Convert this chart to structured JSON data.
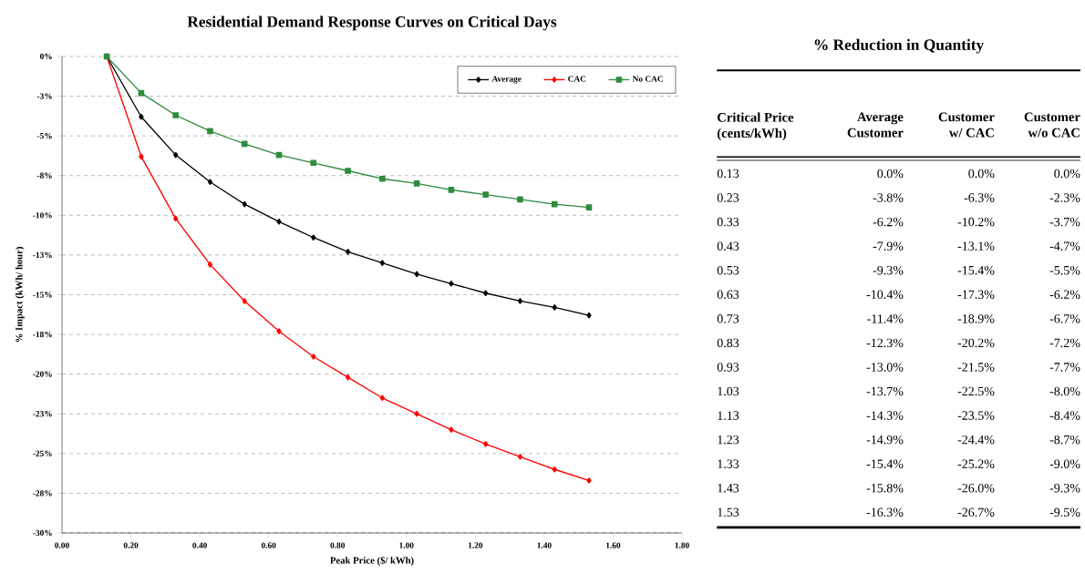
{
  "chart_data": {
    "type": "line",
    "title": "Residential Demand Response Curves on Critical Days",
    "xlabel": "Peak Price ($/ kWh)",
    "ylabel": "% Impact (kWh/ hour)",
    "x": [
      0.13,
      0.23,
      0.33,
      0.43,
      0.53,
      0.63,
      0.73,
      0.83,
      0.93,
      1.03,
      1.13,
      1.23,
      1.33,
      1.43,
      1.53
    ],
    "series": [
      {
        "name": "Average",
        "color": "#000000",
        "marker": "diamond",
        "values": [
          0.0,
          -3.8,
          -6.2,
          -7.9,
          -9.3,
          -10.4,
          -11.4,
          -12.3,
          -13.0,
          -13.7,
          -14.3,
          -14.9,
          -15.4,
          -15.8,
          -16.3
        ]
      },
      {
        "name": "CAC",
        "color": "#ff0000",
        "marker": "diamond",
        "values": [
          0.0,
          -6.3,
          -10.2,
          -13.1,
          -15.4,
          -17.3,
          -18.9,
          -20.2,
          -21.5,
          -22.5,
          -23.5,
          -24.4,
          -25.2,
          -26.0,
          -26.7
        ]
      },
      {
        "name": "No CAC",
        "color": "#2e8b3e",
        "marker": "square",
        "values": [
          0.0,
          -2.3,
          -3.7,
          -4.7,
          -5.5,
          -6.2,
          -6.7,
          -7.2,
          -7.7,
          -8.0,
          -8.4,
          -8.7,
          -9.0,
          -9.3,
          -9.5
        ]
      }
    ],
    "xlim": [
      0,
      1.8
    ],
    "xticks": [
      {
        "value": 0,
        "label": "0.00"
      },
      {
        "value": 0.2,
        "label": "0.20"
      },
      {
        "value": 0.4,
        "label": "0.40"
      },
      {
        "value": 0.6,
        "label": "0.60"
      },
      {
        "value": 0.8,
        "label": "0.80"
      },
      {
        "value": 1.0,
        "label": "1.00"
      },
      {
        "value": 1.2,
        "label": "1.20"
      },
      {
        "value": 1.4,
        "label": "1.40"
      },
      {
        "value": 1.6,
        "label": "1.60"
      },
      {
        "value": 1.8,
        "label": "1.80"
      }
    ],
    "ylim": [
      -30,
      0
    ],
    "yticks": [
      {
        "value": 0,
        "label": "0%"
      },
      {
        "value": -2.5,
        "label": "-3%"
      },
      {
        "value": -5,
        "label": "-5%"
      },
      {
        "value": -7.5,
        "label": "-8%"
      },
      {
        "value": -10,
        "label": "-10%"
      },
      {
        "value": -12.5,
        "label": "-13%"
      },
      {
        "value": -15,
        "label": "-15%"
      },
      {
        "value": -17.5,
        "label": "-18%"
      },
      {
        "value": -20,
        "label": "-20%"
      },
      {
        "value": -22.5,
        "label": "-23%"
      },
      {
        "value": -25,
        "label": "-25%"
      },
      {
        "value": -27.5,
        "label": "-28%"
      },
      {
        "value": -30,
        "label": "-30%"
      }
    ],
    "grid": "y",
    "legend": "top right",
    "line_style": "solid",
    "annotations": [
      "% Reduction in Quantity",
      "Critical Price (cents/kWh)",
      "Average Customer",
      "Customer w/ CAC",
      "Customer w/o CAC",
      "0.13",
      "0.0%",
      "0.0%",
      "0.0%",
      "0.23",
      "-3.8%",
      "-6.3%",
      "-2.3%",
      "0.33",
      "-6.2%",
      "-10.2%",
      "-3.7%",
      "0.43",
      "-7.9%",
      "-13.1%",
      "-4.7%",
      "0.53",
      "-9.3%",
      "-15.4%",
      "-5.5%",
      "0.63",
      "-10.4%",
      "-17.3%",
      "-6.2%",
      "0.73",
      "-11.4%",
      "-18.9%",
      "-6.7%",
      "0.83",
      "-12.3%",
      "-20.2%",
      "-7.2%",
      "0.93",
      "-13.0%",
      "-21.5%",
      "-7.7%",
      "1.03",
      "-13.7%",
      "-22.5%",
      "-8.0%",
      "1.13",
      "-14.3%",
      "-23.5%",
      "-8.4%",
      "1.23",
      "-14.9%",
      "-24.4%",
      "-8.7%",
      "1.33",
      "-15.4%",
      "-25.2%",
      "-9.0%",
      "1.43",
      "-15.8%",
      "-26.0%",
      "-9.3%",
      "1.53",
      "-16.3%",
      "-26.7%",
      "-9.5%"
    ]
  }
}
